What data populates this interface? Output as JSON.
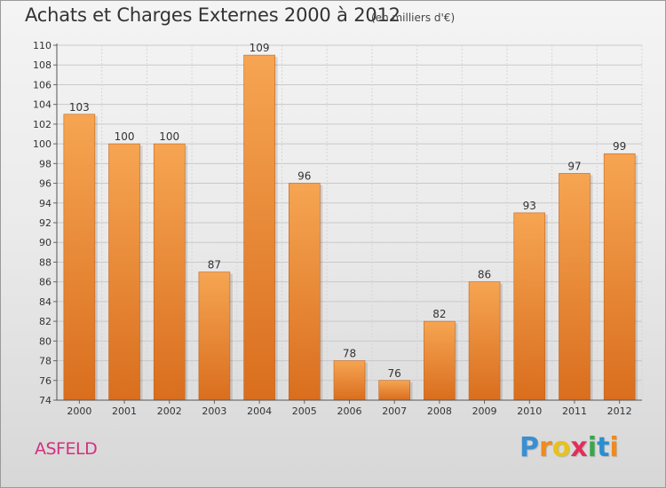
{
  "header": {
    "title": "Achats et Charges Externes 2000 à 2012",
    "subtitle": "(en milliers d'€)"
  },
  "footer": {
    "commune": "ASFELD",
    "brand_letters": [
      "P",
      "r",
      "o",
      "x",
      "i",
      "t",
      "i"
    ],
    "brand_colors": [
      "#3a8fd0",
      "#f08a1c",
      "#e8c21a",
      "#e0305a",
      "#3aa64a",
      "#2a8fd0",
      "#f08a1c"
    ]
  },
  "chart_data": {
    "type": "bar",
    "title": "Achats et Charges Externes 2000 à 2012",
    "subtitle": "(en milliers d'€)",
    "xlabel": "",
    "ylabel": "",
    "categories": [
      "2000",
      "2001",
      "2002",
      "2003",
      "2004",
      "2005",
      "2006",
      "2007",
      "2008",
      "2009",
      "2010",
      "2011",
      "2012"
    ],
    "values": [
      103,
      100,
      100,
      87,
      109,
      96,
      78,
      76,
      82,
      86,
      93,
      97,
      99
    ],
    "ylim": [
      74,
      110
    ],
    "yticks": [
      74,
      76,
      78,
      80,
      82,
      84,
      86,
      88,
      90,
      92,
      94,
      96,
      98,
      100,
      102,
      104,
      106,
      108,
      110
    ],
    "grid": true,
    "bar_color_top": "#f6a552",
    "bar_color_bottom": "#d96e1e",
    "legend": "none"
  }
}
